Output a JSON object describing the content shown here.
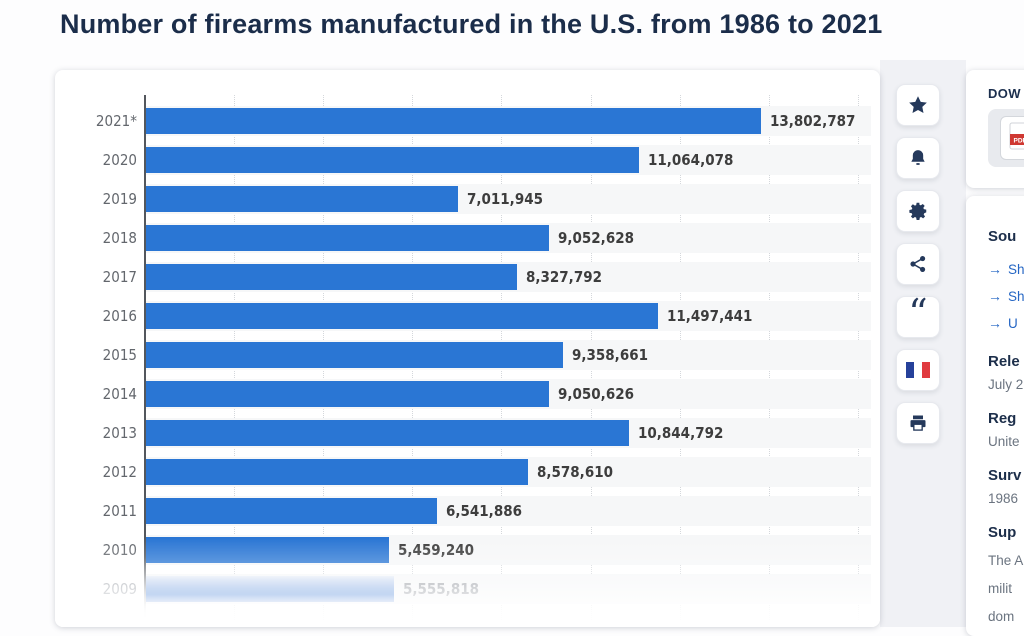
{
  "page": {
    "title": "Number of firearms manufactured in the U.S. from 1986 to 2021"
  },
  "chart_data": {
    "type": "bar",
    "orientation": "horizontal",
    "title": "Number of firearms manufactured in the U.S. from 1986 to 2021",
    "categories": [
      "2021*",
      "2020",
      "2019",
      "2018",
      "2017",
      "2016",
      "2015",
      "2014",
      "2013",
      "2012",
      "2011",
      "2010",
      "2009"
    ],
    "values": [
      13802787,
      11064078,
      7011945,
      9052628,
      8327792,
      11497441,
      9358661,
      9050626,
      10844792,
      8578610,
      6541886,
      5459240,
      5555818
    ],
    "value_labels": [
      "13,802,787",
      "11,064,078",
      "7,011,945",
      "9,052,628",
      "8,327,792",
      "11,497,441",
      "9,358,661",
      "9,050,626",
      "10,844,792",
      "8,578,610",
      "6,541,886",
      "5,459,240",
      "5,555,818"
    ],
    "xlim": [
      0,
      16000000
    ],
    "gridline_interval": 2000000,
    "grid": "vertical-dotted",
    "bar_color": "#2a76d4",
    "faded_last_row": true,
    "faded_label_color": "#a2a6ad"
  },
  "action_rail": {
    "buttons": [
      {
        "name": "favorite-button",
        "icon": "star-icon"
      },
      {
        "name": "notifications-button",
        "icon": "bell-icon"
      },
      {
        "name": "settings-button",
        "icon": "gear-icon"
      },
      {
        "name": "share-button",
        "icon": "share-icon"
      },
      {
        "name": "cite-button",
        "icon": "quote-icon"
      },
      {
        "name": "language-button",
        "icon": "french-flag-icon"
      },
      {
        "name": "print-button",
        "icon": "printer-icon"
      }
    ],
    "icon_color": "#25395b"
  },
  "sidebar": {
    "download": {
      "heading": "DOW",
      "pdf_icon": "pdf-file-icon"
    },
    "details": {
      "sources_heading": "Sou",
      "source_links": [
        "Sh",
        "Sh",
        "U"
      ],
      "release_heading": "Rele",
      "release_value": "July 2",
      "region_heading": "Reg",
      "region_value": "Unite",
      "survey_heading": "Surv",
      "survey_value": "1986",
      "supplement_heading": "Sup",
      "supplement_lines": [
        "The A",
        "milit",
        "dom"
      ],
      "link_color": "#2566c4"
    }
  }
}
